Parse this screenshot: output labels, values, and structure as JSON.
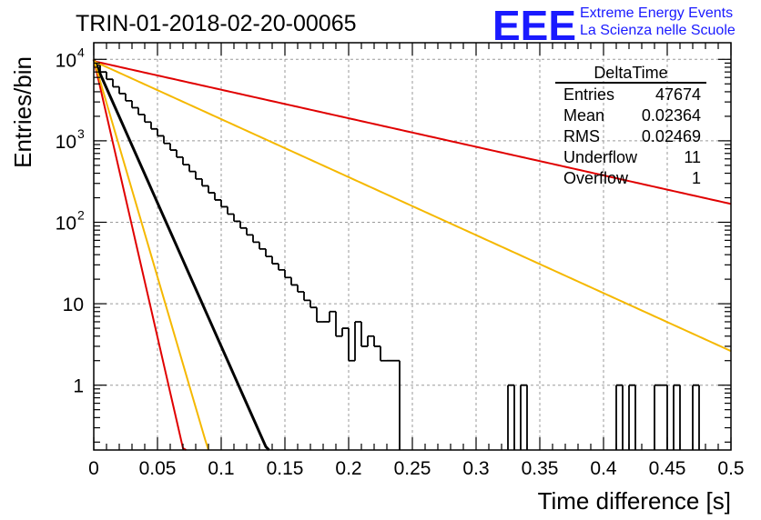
{
  "header": {
    "run_title": "TRIN-01-2018-02-20-00065",
    "logo_text": "EEE",
    "logo_line1": "Extreme Energy Events",
    "logo_line2": "La Scienza nelle Scuole",
    "logo_color": "#1a1aff"
  },
  "stats": {
    "title": "DeltaTime",
    "rows": [
      {
        "label": "Entries",
        "value": "47674"
      },
      {
        "label": "Mean",
        "value": "0.02364"
      },
      {
        "label": "RMS",
        "value": "0.02469"
      },
      {
        "label": "Underflow",
        "value": "11"
      },
      {
        "label": "Overflow",
        "value": "1"
      }
    ]
  },
  "chart_data": {
    "type": "histogram",
    "title": "TRIN-01-2018-02-20-00065",
    "xlabel": "Time difference [s]",
    "ylabel": "Entries/bin",
    "xlim": [
      0,
      0.5
    ],
    "ylim": [
      0.16,
      16000
    ],
    "yscale": "log",
    "grid": true,
    "xticks": [
      "0",
      "0.05",
      "0.1",
      "0.15",
      "0.2",
      "0.25",
      "0.3",
      "0.35",
      "0.4",
      "0.45",
      "0.5"
    ],
    "yticks": [
      {
        "base": "10",
        "exp": "4",
        "value": 10000
      },
      {
        "base": "10",
        "exp": "3",
        "value": 1000
      },
      {
        "base": "10",
        "exp": "2",
        "value": 100
      },
      {
        "base": "10",
        "exp": "",
        "value": 10
      },
      {
        "base": "1",
        "exp": "",
        "value": 1
      }
    ],
    "bin_width": 0.005,
    "counts": [
      8500,
      7000,
      5700,
      4600,
      3800,
      3100,
      2550,
      2100,
      1700,
      1400,
      1150,
      930,
      770,
      630,
      510,
      420,
      340,
      280,
      230,
      188,
      155,
      126,
      103,
      85,
      70,
      57,
      47,
      38,
      31,
      26,
      21,
      17,
      14,
      11,
      9,
      6,
      6,
      8,
      4,
      5,
      2,
      6,
      3,
      4,
      3,
      2,
      2,
      2,
      0,
      0,
      0,
      0,
      0,
      0,
      0,
      0,
      0,
      0,
      0,
      0,
      0,
      0,
      0,
      0,
      0,
      1,
      0,
      1,
      0,
      0,
      0,
      0,
      0,
      0,
      0,
      0,
      0,
      0,
      0,
      0,
      0,
      0,
      1,
      0,
      1,
      0,
      0,
      0,
      1,
      1,
      0,
      1,
      0,
      0,
      1,
      0,
      0,
      0,
      0,
      0
    ],
    "series": [
      {
        "type": "fit",
        "color": "#000000",
        "y0": 10000,
        "slope_per_s": -81.1
      },
      {
        "type": "exp",
        "color": "#e00000",
        "y0": 10000,
        "slope_per_s": -157
      },
      {
        "type": "exp",
        "color": "#f5b800",
        "y0": 10000,
        "slope_per_s": -123
      },
      {
        "type": "exp",
        "color": "#e00000",
        "y0": 9500,
        "slope_per_s": -8.07
      },
      {
        "type": "exp",
        "color": "#f5b800",
        "y0": 9500,
        "slope_per_s": -16.39
      }
    ]
  }
}
